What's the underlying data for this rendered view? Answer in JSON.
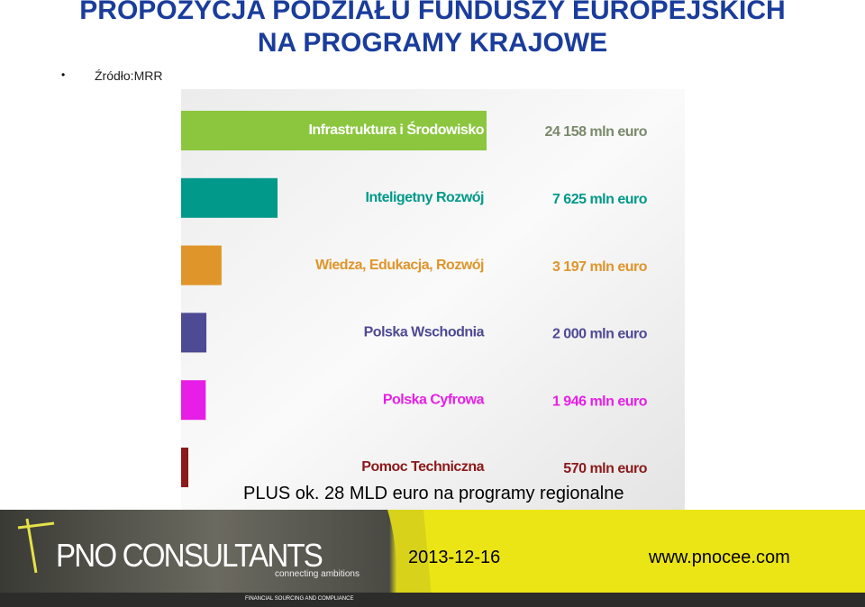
{
  "header": {
    "title": "PROPOZYCJA PODZIAŁU FUNDUSZY EUROPEJSKICH NA PROGRAMY KRAJOWE",
    "source": "Źródło:MRR"
  },
  "chart_data": {
    "type": "bar",
    "orientation": "horizontal",
    "categories": [
      "Infrastruktura i Środowisko",
      "Inteligetny Rozwój",
      "Wiedza, Edukacja, Rozwój",
      "Polska Wschodnia",
      "Polska Cyfrowa",
      "Pomoc Techniczna"
    ],
    "values": [
      24158,
      7625,
      3197,
      2000,
      1946,
      570
    ],
    "value_labels": [
      "24 158 mln euro",
      "7 625 mln euro",
      "3 197 mln euro",
      "2 000 mln euro",
      "1 946 mln euro",
      "570 mln euro"
    ],
    "colors": [
      "#8cc63f",
      "#00998a",
      "#e0952a",
      "#4e4a93",
      "#e61ee6",
      "#8b1a1a"
    ]
  },
  "note": "PLUS ok. 28 MLD euro na programy regionalne",
  "footer": {
    "brand": "PNO CONSULTANTS",
    "tagline": "connecting ambitions",
    "strip": "FINANCIAL SOURCING AND COMPLIANCE",
    "date": "2013-12-16",
    "url": "www.pnocee.com"
  }
}
